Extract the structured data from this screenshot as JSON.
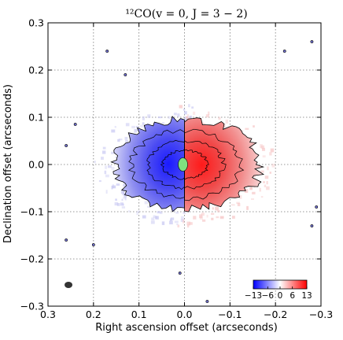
{
  "chart_data": {
    "type": "heatmap",
    "title": "¹²CO(v = 0,  J = 3 − 2)",
    "xlabel": "Right ascension offset (arcseconds)",
    "ylabel": "Declination offset (arcseconds)",
    "xlim": [
      0.3,
      -0.3
    ],
    "ylim": [
      -0.3,
      0.3
    ],
    "x_ticks": [
      0.3,
      0.2,
      0.1,
      0.0,
      -0.1,
      -0.2,
      -0.3
    ],
    "x_tick_labels": [
      "0.3",
      "0.2",
      "0.1",
      "0.0",
      "−0.1",
      "−0.2",
      "−0.3"
    ],
    "y_ticks": [
      -0.3,
      -0.2,
      -0.1,
      0.0,
      0.1,
      0.2,
      0.3
    ],
    "y_tick_labels": [
      "−0.3",
      "−0.2",
      "−0.1",
      "0.0",
      "0.1",
      "0.2",
      "0.3"
    ],
    "grid": true,
    "colorbar": {
      "placement": "bottom-right",
      "min": -13,
      "max": 13,
      "tick_values": [
        -13,
        -6,
        0,
        6,
        13
      ],
      "tick_labels": [
        "−13",
        "−6",
        "0",
        "6",
        "13"
      ],
      "colors": [
        "#0000ff",
        "#ffffff",
        "#ff0000"
      ]
    },
    "emission": {
      "blue_lobe": {
        "x_range": [
          0.16,
          0.0
        ],
        "y_range": [
          -0.1,
          0.09
        ]
      },
      "red_lobe": {
        "x_range": [
          0.0,
          -0.17
        ],
        "y_range": [
          -0.1,
          0.09
        ]
      },
      "central_mask": {
        "x": 0.0,
        "y": 0.0,
        "color": "#7fe07f"
      },
      "beam": {
        "x": 0.255,
        "y": -0.255,
        "color": "#333333"
      }
    }
  }
}
